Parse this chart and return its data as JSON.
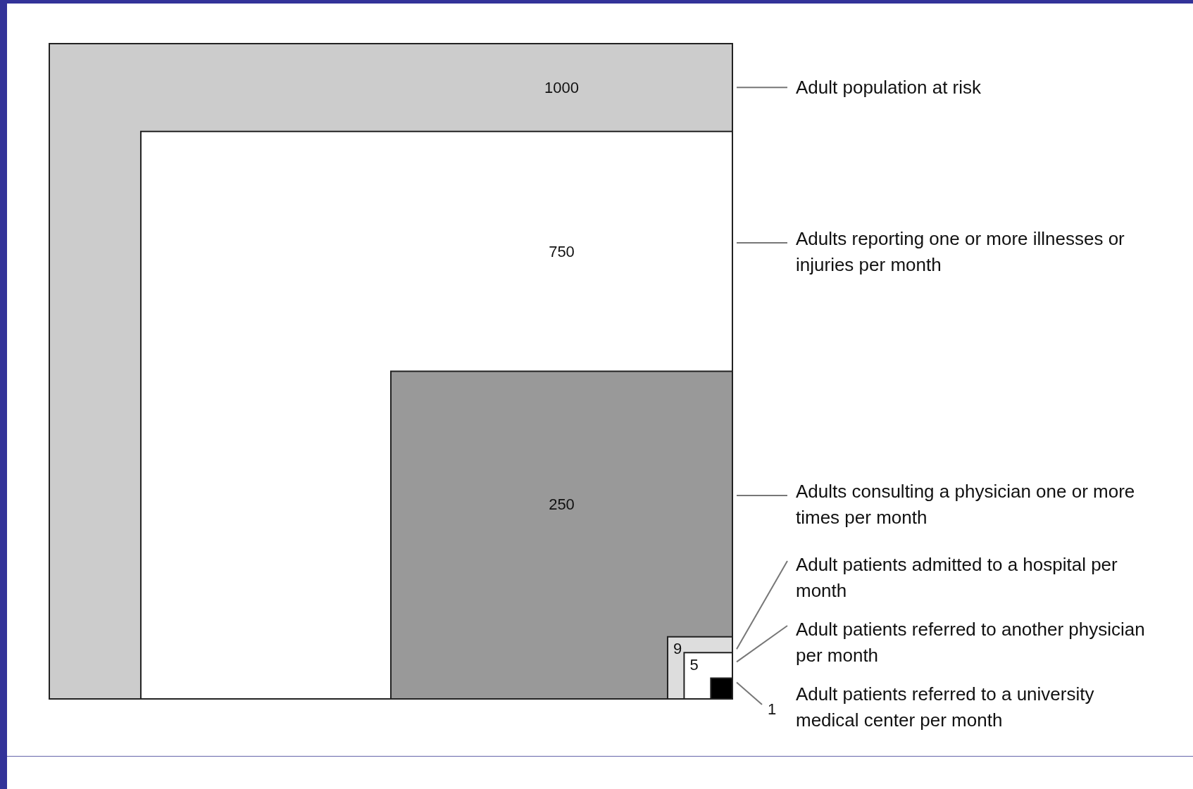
{
  "chart_data": {
    "type": "other",
    "categories": [
      "Adult population at risk",
      "Adults reporting one or more illnesses or injuries per month",
      "Adults consulting a physician one or more times per month",
      "Adult patients admitted to a hospital per month",
      "Adult patients referred to another physician per month",
      "Adult patients referred to a university medical center per month"
    ],
    "values": [
      1000,
      750,
      250,
      9,
      5,
      1
    ],
    "colors": [
      "#cccccc",
      "#ffffff",
      "#999999",
      "#dddddd",
      "#ffffff",
      "#000000"
    ],
    "data_labels": true
  }
}
